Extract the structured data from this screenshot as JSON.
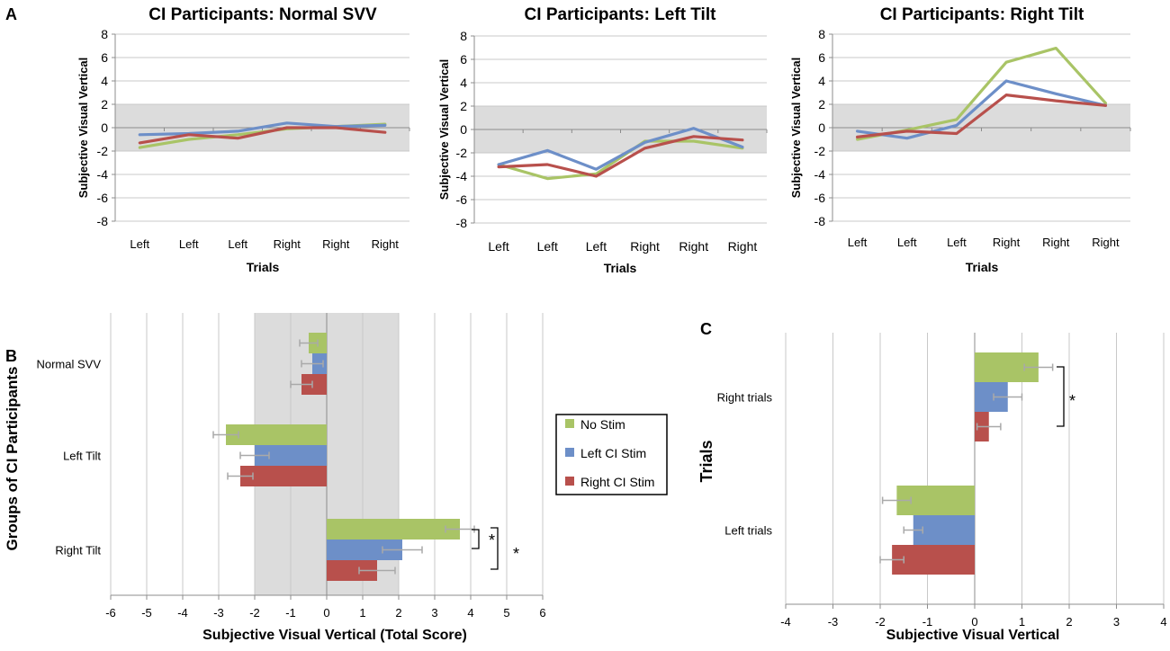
{
  "panel_labels": {
    "a": "A",
    "b": "B",
    "c": "C"
  },
  "colors": {
    "no_stim": "#a9c466",
    "left_ci": "#6d8fc8",
    "right_ci": "#b8504c",
    "band": "#dcdcdc",
    "grid": "#c8c8c8",
    "axis": "#8c8c8c",
    "error": "#a9a9a9"
  },
  "legend": {
    "no_stim": "No Stim",
    "left_ci": "Left CI Stim",
    "right_ci": "Right CI Stim"
  },
  "chart_data": [
    {
      "id": "normal",
      "type": "line",
      "title": "CI Participants: Normal SVV",
      "xlabel": "Trials",
      "ylabel": "Subjective Visual Vertical",
      "categories": [
        "Left",
        "Left",
        "Left",
        "Right",
        "Right",
        "Right"
      ],
      "ylim": [
        -8,
        8
      ],
      "yticks": [
        -8,
        -6,
        -4,
        -2,
        0,
        2,
        4,
        6,
        8
      ],
      "shaded_band": [
        -2,
        2
      ],
      "series": [
        {
          "name": "No Stim",
          "color_key": "no_stim",
          "values": [
            -1.7,
            -1.0,
            -0.6,
            -0.1,
            0.1,
            0.3
          ]
        },
        {
          "name": "Left CI Stim",
          "color_key": "left_ci",
          "values": [
            -0.6,
            -0.5,
            -0.3,
            0.4,
            0.1,
            0.2
          ]
        },
        {
          "name": "Right CI Stim",
          "color_key": "right_ci",
          "values": [
            -1.3,
            -0.6,
            -0.9,
            0.0,
            0.0,
            -0.4
          ]
        }
      ]
    },
    {
      "id": "left",
      "type": "line",
      "title": "CI Participants: Left Tilt",
      "xlabel": "Trials",
      "ylabel": "Subjective Visual Vertical",
      "categories": [
        "Left",
        "Left",
        "Left",
        "Right",
        "Right",
        "Right"
      ],
      "ylim": [
        -8,
        8
      ],
      "yticks": [
        -8,
        -6,
        -4,
        -2,
        0,
        2,
        4,
        6,
        8
      ],
      "shaded_band": [
        -2,
        2
      ],
      "series": [
        {
          "name": "No Stim",
          "color_key": "no_stim",
          "values": [
            -3.0,
            -4.2,
            -3.8,
            -1.0,
            -1.0,
            -1.6
          ]
        },
        {
          "name": "Left CI Stim",
          "color_key": "left_ci",
          "values": [
            -3.0,
            -1.8,
            -3.4,
            -1.1,
            0.1,
            -1.5
          ]
        },
        {
          "name": "Right CI Stim",
          "color_key": "right_ci",
          "values": [
            -3.2,
            -3.0,
            -4.0,
            -1.6,
            -0.6,
            -0.9
          ]
        }
      ]
    },
    {
      "id": "right",
      "type": "line",
      "title": "CI Participants: Right Tilt",
      "xlabel": "Trials",
      "ylabel": "Subjective Visual Vertical",
      "categories": [
        "Left",
        "Left",
        "Left",
        "Right",
        "Right",
        "Right"
      ],
      "ylim": [
        -8,
        8
      ],
      "yticks": [
        -8,
        -6,
        -4,
        -2,
        0,
        2,
        4,
        6,
        8
      ],
      "shaded_band": [
        -2,
        2
      ],
      "series": [
        {
          "name": "No Stim",
          "color_key": "no_stim",
          "values": [
            -1.0,
            -0.2,
            0.7,
            5.6,
            6.8,
            2.1
          ]
        },
        {
          "name": "Left CI Stim",
          "color_key": "left_ci",
          "values": [
            -0.3,
            -0.9,
            0.2,
            4.0,
            2.9,
            1.9
          ]
        },
        {
          "name": "Right CI Stim",
          "color_key": "right_ci",
          "values": [
            -0.8,
            -0.3,
            -0.5,
            2.8,
            2.3,
            1.9
          ]
        }
      ]
    },
    {
      "id": "groups",
      "type": "bar",
      "orientation": "horizontal",
      "xlabel": "Subjective Visual Vertical (Total Score)",
      "ylabel": "Groups of CI Participants",
      "categories": [
        "Normal SVV",
        "Left Tilt",
        "Right Tilt"
      ],
      "xlim": [
        -6,
        6
      ],
      "xticks": [
        -6,
        -5,
        -4,
        -3,
        -2,
        -1,
        0,
        1,
        2,
        3,
        4,
        5,
        6
      ],
      "shaded_band": [
        -2,
        2
      ],
      "series": [
        {
          "name": "No Stim",
          "color_key": "no_stim",
          "values": [
            -0.5,
            -2.8,
            3.7
          ],
          "errors": [
            0.25,
            0.35,
            0.4
          ]
        },
        {
          "name": "Left CI Stim",
          "color_key": "left_ci",
          "values": [
            -0.4,
            -2.0,
            2.1
          ],
          "errors": [
            0.3,
            0.4,
            0.55
          ]
        },
        {
          "name": "Right CI Stim",
          "color_key": "right_ci",
          "values": [
            -0.7,
            -2.4,
            1.4
          ],
          "errors": [
            0.3,
            0.35,
            0.5
          ]
        }
      ],
      "significance": [
        {
          "text": "*",
          "category": "Right Tilt",
          "between": [
            "No Stim",
            "Left CI Stim"
          ]
        },
        {
          "text": "*",
          "category": "Right Tilt",
          "between": [
            "No Stim",
            "Right CI Stim"
          ]
        }
      ]
    },
    {
      "id": "trials",
      "type": "bar",
      "orientation": "horizontal",
      "xlabel": "Subjective Visual Vertical",
      "ylabel": "Trials",
      "categories": [
        "Right trials",
        "Left trials"
      ],
      "xlim": [
        -4,
        4
      ],
      "xticks": [
        -4,
        -3,
        -2,
        -1,
        0,
        1,
        2,
        3,
        4
      ],
      "series": [
        {
          "name": "No Stim",
          "color_key": "no_stim",
          "values": [
            1.35,
            -1.65
          ],
          "errors": [
            0.3,
            0.3
          ]
        },
        {
          "name": "Left CI Stim",
          "color_key": "left_ci",
          "values": [
            0.7,
            -1.3
          ],
          "errors": [
            0.3,
            0.2
          ]
        },
        {
          "name": "Right CI Stim",
          "color_key": "right_ci",
          "values": [
            0.3,
            -1.75
          ],
          "errors": [
            0.25,
            0.25
          ]
        }
      ],
      "significance": [
        {
          "text": "*",
          "category": "Right trials",
          "between": [
            "No Stim",
            "Right CI Stim"
          ]
        }
      ]
    }
  ]
}
